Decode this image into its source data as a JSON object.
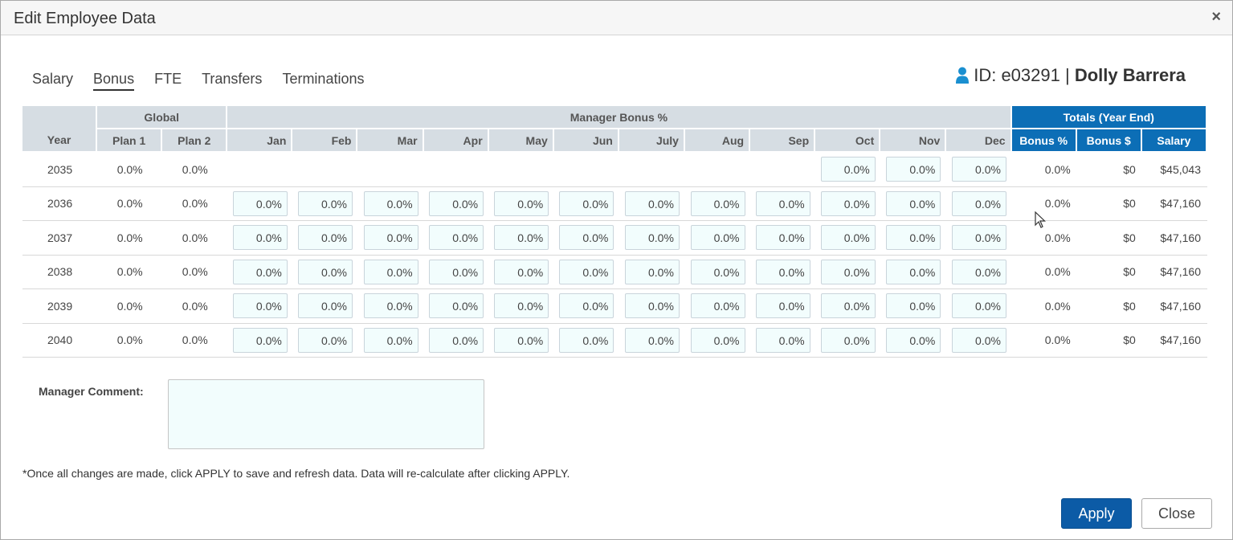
{
  "dialog": {
    "title": "Edit Employee Data",
    "close_glyph": "×"
  },
  "tabs": [
    {
      "label": "Salary"
    },
    {
      "label": "Bonus",
      "active": true
    },
    {
      "label": "FTE"
    },
    {
      "label": "Transfers"
    },
    {
      "label": "Terminations"
    }
  ],
  "employee": {
    "id_text": "ID: e03291 |",
    "name": "Dolly Barrera",
    "icon": "user-icon",
    "icon_color": "#1a8fd0"
  },
  "table": {
    "group_headers": {
      "global": "Global",
      "manager": "Manager Bonus %",
      "totals": "Totals (Year End)"
    },
    "columns": {
      "year": "Year",
      "plan1": "Plan 1",
      "plan2": "Plan 2",
      "months": [
        "Jan",
        "Feb",
        "Mar",
        "Apr",
        "May",
        "Jun",
        "July",
        "Aug",
        "Sep",
        "Oct",
        "Nov",
        "Dec"
      ],
      "bonus_pct": "Bonus %",
      "bonus_usd": "Bonus $",
      "salary": "Salary"
    },
    "rows": [
      {
        "year": "2035",
        "plan1": "0.0%",
        "plan2": "0.0%",
        "months": [
          null,
          null,
          null,
          null,
          null,
          null,
          null,
          null,
          null,
          "0.0%",
          "0.0%",
          "0.0%"
        ],
        "bonus_pct": "0.0%",
        "bonus_usd": "$0",
        "salary": "$45,043"
      },
      {
        "year": "2036",
        "plan1": "0.0%",
        "plan2": "0.0%",
        "months": [
          "0.0%",
          "0.0%",
          "0.0%",
          "0.0%",
          "0.0%",
          "0.0%",
          "0.0%",
          "0.0%",
          "0.0%",
          "0.0%",
          "0.0%",
          "0.0%"
        ],
        "bonus_pct": "0.0%",
        "bonus_usd": "$0",
        "salary": "$47,160"
      },
      {
        "year": "2037",
        "plan1": "0.0%",
        "plan2": "0.0%",
        "months": [
          "0.0%",
          "0.0%",
          "0.0%",
          "0.0%",
          "0.0%",
          "0.0%",
          "0.0%",
          "0.0%",
          "0.0%",
          "0.0%",
          "0.0%",
          "0.0%"
        ],
        "bonus_pct": "0.0%",
        "bonus_usd": "$0",
        "salary": "$47,160"
      },
      {
        "year": "2038",
        "plan1": "0.0%",
        "plan2": "0.0%",
        "months": [
          "0.0%",
          "0.0%",
          "0.0%",
          "0.0%",
          "0.0%",
          "0.0%",
          "0.0%",
          "0.0%",
          "0.0%",
          "0.0%",
          "0.0%",
          "0.0%"
        ],
        "bonus_pct": "0.0%",
        "bonus_usd": "$0",
        "salary": "$47,160"
      },
      {
        "year": "2039",
        "plan1": "0.0%",
        "plan2": "0.0%",
        "months": [
          "0.0%",
          "0.0%",
          "0.0%",
          "0.0%",
          "0.0%",
          "0.0%",
          "0.0%",
          "0.0%",
          "0.0%",
          "0.0%",
          "0.0%",
          "0.0%"
        ],
        "bonus_pct": "0.0%",
        "bonus_usd": "$0",
        "salary": "$47,160"
      },
      {
        "year": "2040",
        "plan1": "0.0%",
        "plan2": "0.0%",
        "months": [
          "0.0%",
          "0.0%",
          "0.0%",
          "0.0%",
          "0.0%",
          "0.0%",
          "0.0%",
          "0.0%",
          "0.0%",
          "0.0%",
          "0.0%",
          "0.0%"
        ],
        "bonus_pct": "0.0%",
        "bonus_usd": "$0",
        "salary": "$47,160"
      }
    ]
  },
  "comment": {
    "label": "Manager Comment:",
    "value": ""
  },
  "note": "*Once all changes are made, click APPLY to save and refresh data. Data will re-calculate after clicking APPLY.",
  "buttons": {
    "apply": "Apply",
    "close": "Close"
  },
  "colors": {
    "header_blue": "#0c6eb6",
    "header_gray": "#d6dde3",
    "apply_blue": "#0c5ba6",
    "input_bg": "#f2fdfd"
  }
}
